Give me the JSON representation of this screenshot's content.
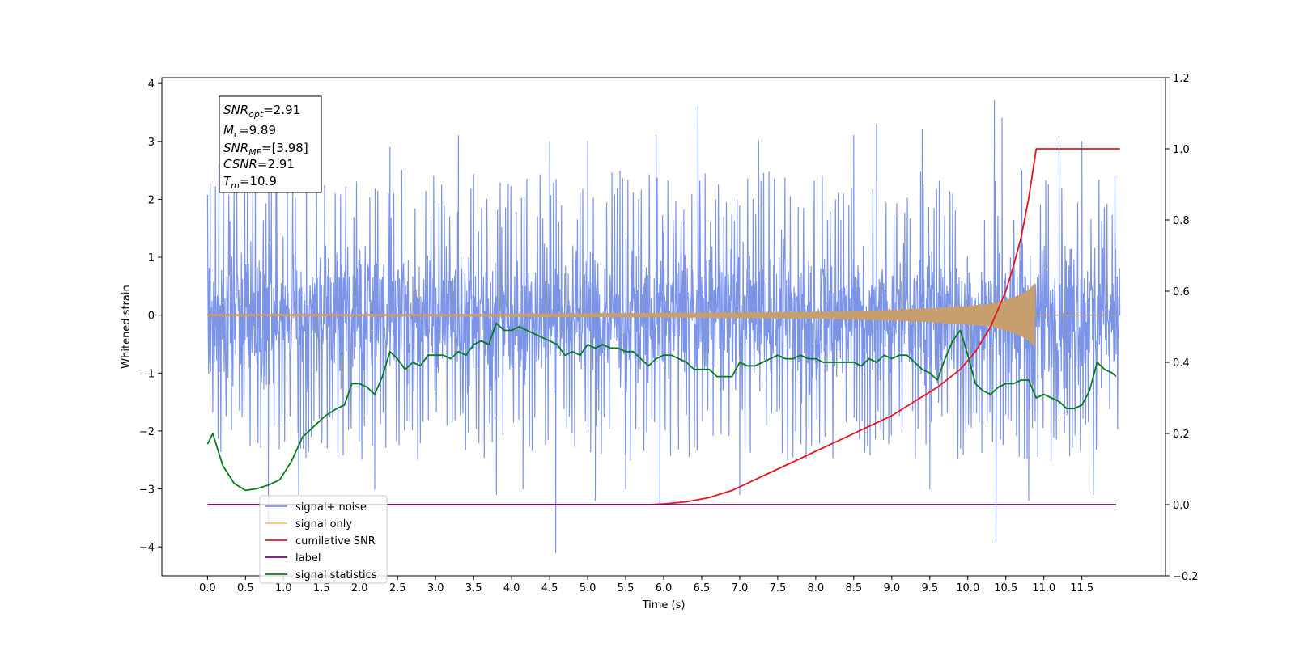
{
  "chart_data": {
    "type": "line",
    "xlabel": "Time (s)",
    "ylabel": "Whitened strain",
    "xlim": [
      -0.6,
      12.6
    ],
    "ylim": [
      -4.5,
      4.1
    ],
    "y2lim": [
      -0.2,
      1.2
    ],
    "x_ticks": [
      "0.0",
      "0.5",
      "1.0",
      "1.5",
      "2.0",
      "2.5",
      "3.0",
      "3.5",
      "4.0",
      "4.5",
      "5.0",
      "5.5",
      "6.0",
      "6.5",
      "7.0",
      "7.5",
      "8.0",
      "8.5",
      "9.0",
      "9.5",
      "10.0",
      "10.5",
      "11.0",
      "11.5"
    ],
    "y_ticks": [
      "4",
      "3",
      "2",
      "1",
      "0",
      "−1",
      "−2",
      "−3",
      "−4"
    ],
    "y2_ticks": [
      "1.2",
      "1.0",
      "0.8",
      "0.6",
      "0.4",
      "0.2",
      "0.0",
      "−0.2"
    ],
    "grid": false,
    "legend_position": "lower-left",
    "legend": [
      {
        "label": "signal+ noise",
        "color": "#7b94e8"
      },
      {
        "label": "signal only",
        "color": "#ffc46b"
      },
      {
        "label": "cumilative SNR",
        "color": "#e8141c"
      },
      {
        "label": "label",
        "color": "#6b0a6b"
      },
      {
        "label": "signal statistics",
        "color": "#0a7a1c"
      }
    ],
    "annotation": {
      "lines": [
        {
          "main": "SNR",
          "sub": "opt",
          "rest": "=2.91"
        },
        {
          "main": "M",
          "sub": "c",
          "rest": "=9.89"
        },
        {
          "main": "SNR",
          "sub": "MF",
          "rest": "=[3.98]"
        },
        {
          "main": "CSNR",
          "sub": "",
          "rest": "=2.91"
        },
        {
          "main": "T",
          "sub": "m",
          "rest": "=10.9"
        }
      ]
    },
    "series": [
      {
        "name": "signal+ noise",
        "axis": "left",
        "color": "#7b94e8",
        "noise_band": [
          -1.3,
          1.35
        ],
        "peaks": [
          {
            "x": 0.15,
            "y": 2.6
          },
          {
            "x": 0.9,
            "y": 3.0
          },
          {
            "x": 1.3,
            "y": 3.0
          },
          {
            "x": 2.4,
            "y": 2.9
          },
          {
            "x": 3.3,
            "y": 3.1
          },
          {
            "x": 4.5,
            "y": 3.0
          },
          {
            "x": 5.0,
            "y": 3.0
          },
          {
            "x": 5.9,
            "y": 3.1
          },
          {
            "x": 6.45,
            "y": 3.6
          },
          {
            "x": 7.25,
            "y": 3.0
          },
          {
            "x": 8.5,
            "y": 3.1
          },
          {
            "x": 8.8,
            "y": 3.3
          },
          {
            "x": 9.4,
            "y": 3.2
          },
          {
            "x": 10.35,
            "y": 3.7
          },
          {
            "x": 10.45,
            "y": 3.4
          },
          {
            "x": 11.2,
            "y": 3.0
          },
          {
            "x": 11.5,
            "y": 3.0
          }
        ],
        "troughs": [
          {
            "x": 0.8,
            "y": -3.6
          },
          {
            "x": 1.2,
            "y": -3.1
          },
          {
            "x": 2.2,
            "y": -3.0
          },
          {
            "x": 3.8,
            "y": -3.1
          },
          {
            "x": 4.15,
            "y": -3.0
          },
          {
            "x": 4.58,
            "y": -4.1
          },
          {
            "x": 5.1,
            "y": -3.2
          },
          {
            "x": 5.5,
            "y": -3.0
          },
          {
            "x": 5.95,
            "y": -3.25
          },
          {
            "x": 7.0,
            "y": -3.1
          },
          {
            "x": 9.5,
            "y": -3.0
          },
          {
            "x": 10.37,
            "y": -3.9
          },
          {
            "x": 10.8,
            "y": -3.2
          },
          {
            "x": 11.65,
            "y": -3.1
          }
        ]
      },
      {
        "name": "signal only",
        "axis": "left",
        "color": "#c79e6e",
        "envelope": [
          [
            0.0,
            0.02
          ],
          [
            3.0,
            0.02
          ],
          [
            6.0,
            0.04
          ],
          [
            8.0,
            0.06
          ],
          [
            9.0,
            0.09
          ],
          [
            9.5,
            0.12
          ],
          [
            10.0,
            0.16
          ],
          [
            10.3,
            0.2
          ],
          [
            10.5,
            0.26
          ],
          [
            10.7,
            0.36
          ],
          [
            10.8,
            0.44
          ],
          [
            10.88,
            0.55
          ],
          [
            10.9,
            0.0
          ],
          [
            12.0,
            0.0
          ]
        ]
      },
      {
        "name": "cumilative SNR",
        "axis": "right",
        "color": "#e8141c",
        "x": [
          0.0,
          5.8,
          6.0,
          6.3,
          6.6,
          6.9,
          7.2,
          7.5,
          7.8,
          8.1,
          8.4,
          8.7,
          9.0,
          9.3,
          9.6,
          9.9,
          10.1,
          10.3,
          10.5,
          10.6,
          10.7,
          10.8,
          10.85,
          10.9,
          11.0,
          12.0
        ],
        "y": [
          0.0,
          0.0,
          0.002,
          0.008,
          0.02,
          0.04,
          0.07,
          0.1,
          0.13,
          0.16,
          0.19,
          0.22,
          0.25,
          0.29,
          0.33,
          0.38,
          0.43,
          0.5,
          0.6,
          0.67,
          0.75,
          0.86,
          0.93,
          1.0,
          1.0,
          1.0
        ]
      },
      {
        "name": "label",
        "axis": "right",
        "color": "#6b0a6b",
        "x": [
          0.0,
          11.95
        ],
        "y": [
          0.0,
          0.0
        ]
      },
      {
        "name": "signal statistics",
        "axis": "right",
        "color": "#0a7a1c",
        "x": [
          0.0,
          0.07,
          0.2,
          0.35,
          0.5,
          0.65,
          0.8,
          0.95,
          1.1,
          1.25,
          1.4,
          1.55,
          1.7,
          1.8,
          1.9,
          2.0,
          2.1,
          2.2,
          2.3,
          2.4,
          2.5,
          2.6,
          2.7,
          2.8,
          2.9,
          3.0,
          3.1,
          3.2,
          3.3,
          3.4,
          3.5,
          3.6,
          3.7,
          3.8,
          3.9,
          4.0,
          4.1,
          4.2,
          4.3,
          4.4,
          4.5,
          4.6,
          4.7,
          4.8,
          4.9,
          5.0,
          5.1,
          5.2,
          5.3,
          5.4,
          5.5,
          5.6,
          5.7,
          5.8,
          5.9,
          6.0,
          6.1,
          6.2,
          6.3,
          6.4,
          6.5,
          6.6,
          6.7,
          6.8,
          6.9,
          7.0,
          7.1,
          7.2,
          7.3,
          7.4,
          7.5,
          7.6,
          7.7,
          7.8,
          7.9,
          8.0,
          8.1,
          8.2,
          8.3,
          8.4,
          8.5,
          8.6,
          8.7,
          8.8,
          8.9,
          9.0,
          9.1,
          9.2,
          9.3,
          9.4,
          9.5,
          9.6,
          9.7,
          9.8,
          9.9,
          10.0,
          10.1,
          10.2,
          10.3,
          10.4,
          10.5,
          10.6,
          10.7,
          10.8,
          10.9,
          11.0,
          11.1,
          11.2,
          11.3,
          11.4,
          11.5,
          11.6,
          11.7,
          11.8,
          11.9,
          11.95
        ],
        "y": [
          0.17,
          0.2,
          0.11,
          0.06,
          0.04,
          0.045,
          0.055,
          0.07,
          0.12,
          0.19,
          0.22,
          0.25,
          0.27,
          0.28,
          0.34,
          0.34,
          0.33,
          0.31,
          0.36,
          0.43,
          0.41,
          0.38,
          0.4,
          0.39,
          0.42,
          0.42,
          0.42,
          0.41,
          0.43,
          0.42,
          0.45,
          0.46,
          0.45,
          0.51,
          0.49,
          0.49,
          0.5,
          0.49,
          0.48,
          0.47,
          0.46,
          0.45,
          0.42,
          0.43,
          0.42,
          0.45,
          0.44,
          0.45,
          0.44,
          0.44,
          0.43,
          0.43,
          0.41,
          0.39,
          0.41,
          0.42,
          0.42,
          0.41,
          0.4,
          0.38,
          0.38,
          0.38,
          0.36,
          0.36,
          0.36,
          0.4,
          0.39,
          0.39,
          0.4,
          0.41,
          0.42,
          0.41,
          0.41,
          0.42,
          0.41,
          0.41,
          0.4,
          0.4,
          0.4,
          0.4,
          0.4,
          0.39,
          0.41,
          0.4,
          0.42,
          0.41,
          0.42,
          0.42,
          0.4,
          0.38,
          0.37,
          0.35,
          0.41,
          0.46,
          0.49,
          0.42,
          0.34,
          0.32,
          0.31,
          0.33,
          0.34,
          0.34,
          0.35,
          0.35,
          0.3,
          0.31,
          0.3,
          0.29,
          0.27,
          0.27,
          0.28,
          0.32,
          0.4,
          0.38,
          0.37,
          0.36
        ]
      }
    ]
  }
}
